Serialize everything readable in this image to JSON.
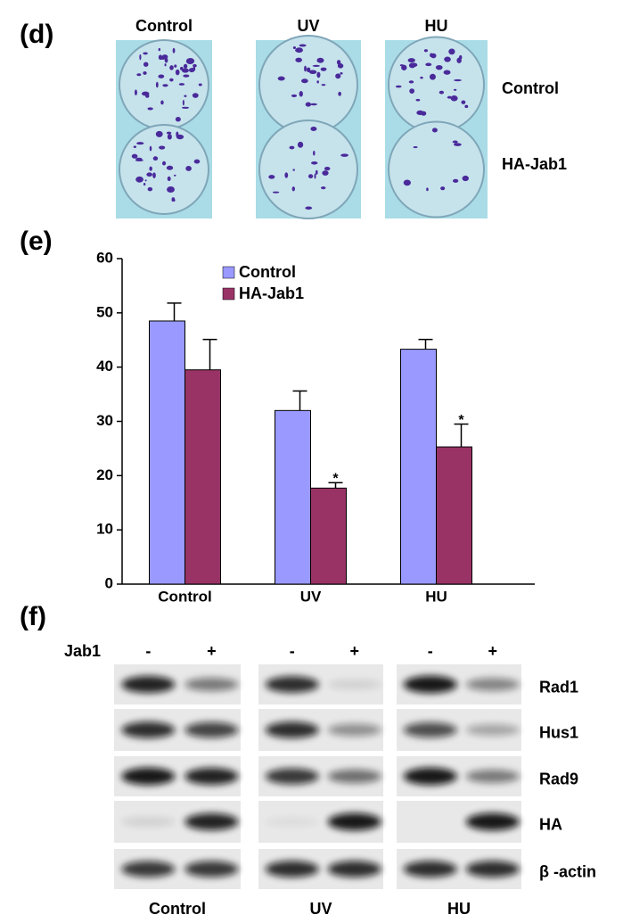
{
  "panel_d": {
    "label": "(d)",
    "columns": [
      "Control",
      "UV",
      "HU"
    ],
    "rows": [
      "Control",
      "HA-Jab1"
    ]
  },
  "panel_e_label": "(e)",
  "chart_data": {
    "type": "bar",
    "categories": [
      "Control",
      "UV",
      "HU"
    ],
    "series": [
      {
        "name": "Control",
        "color": "#9999ff",
        "values": [
          48.5,
          32,
          43.3
        ],
        "errors": [
          3.3,
          3.6,
          1.8
        ]
      },
      {
        "name": "HA-Jab1",
        "color": "#993366",
        "values": [
          39.5,
          17.7,
          25.3
        ],
        "errors": [
          5.6,
          1.0,
          4.2
        ],
        "significance_labels": [
          null,
          "*",
          "*"
        ]
      }
    ],
    "ylim": [
      0,
      60
    ],
    "yticks": [
      0,
      10,
      20,
      30,
      40,
      50,
      60
    ],
    "grid": false,
    "legend": "upper left"
  },
  "panel_f": {
    "label": "(f)",
    "treatment": "Jab1",
    "lanes": [
      "-",
      "+"
    ],
    "proteins": [
      "Rad1",
      "Hus1",
      "Rad9",
      "HA",
      "β -actin"
    ],
    "groups": [
      "Control",
      "UV",
      "HU"
    ]
  }
}
